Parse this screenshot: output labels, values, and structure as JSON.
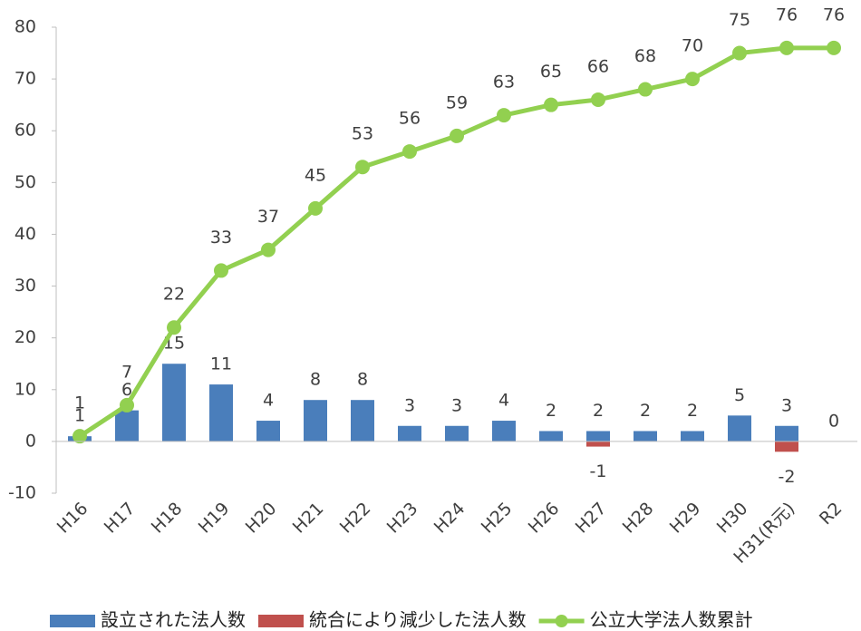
{
  "chart_data": {
    "type": "bar",
    "categories": [
      "H16",
      "H17",
      "H18",
      "H19",
      "H20",
      "H21",
      "H22",
      "H23",
      "H24",
      "H25",
      "H26",
      "H27",
      "H28",
      "H29",
      "H30",
      "H31(R元)",
      "R2"
    ],
    "series": [
      {
        "name": "設立された法人数",
        "type": "bar",
        "color": "#4a7ebb",
        "values": [
          1,
          6,
          15,
          11,
          4,
          8,
          8,
          3,
          3,
          4,
          2,
          2,
          2,
          2,
          5,
          3,
          0
        ]
      },
      {
        "name": "統合により減少した法人数",
        "type": "bar",
        "color": "#c0504d",
        "values": [
          null,
          null,
          null,
          null,
          null,
          null,
          null,
          null,
          null,
          null,
          null,
          -1,
          null,
          null,
          null,
          -2,
          null
        ]
      },
      {
        "name": "公立大学法人数累計",
        "type": "line",
        "color": "#92d050",
        "values": [
          1,
          7,
          22,
          33,
          37,
          45,
          53,
          56,
          59,
          63,
          65,
          66,
          68,
          70,
          75,
          76,
          76
        ]
      }
    ],
    "ylim": [
      -10,
      80
    ],
    "yticks": [
      -10,
      0,
      10,
      20,
      30,
      40,
      50,
      60,
      70,
      80
    ],
    "grid": false,
    "legend": "bottom"
  }
}
